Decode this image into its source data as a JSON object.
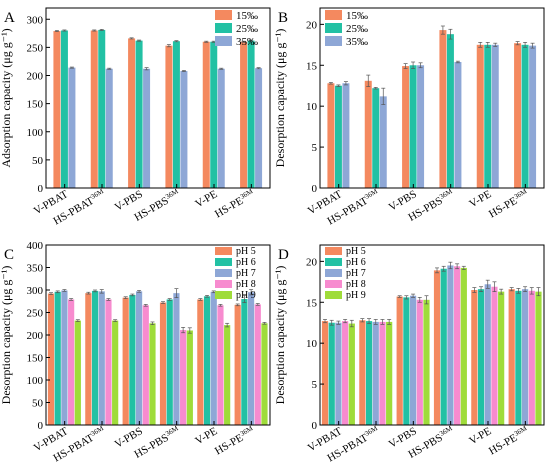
{
  "colors": {
    "orange": "#f4895f",
    "teal": "#22c1a4",
    "blue": "#8ea7d6",
    "pink": "#f78bcf",
    "green": "#9fdc3a"
  },
  "chart_data": [
    {
      "panel_letter": "A",
      "type": "bar",
      "ylabel": "Adsorption capacity (μg g⁻¹)",
      "ylim": [
        0,
        320
      ],
      "yticks": [
        0,
        50,
        100,
        150,
        200,
        250,
        300
      ],
      "categories": [
        {
          "base": "V-PBAT",
          "sup": ""
        },
        {
          "base": "HS-PBAT",
          "sup": "36M"
        },
        {
          "base": "V-PBS",
          "sup": ""
        },
        {
          "base": "HS-PBS",
          "sup": "36M"
        },
        {
          "base": "V-PE",
          "sup": ""
        },
        {
          "base": "HS-PE",
          "sup": "36M"
        }
      ],
      "legend_position": "top-right",
      "series": [
        {
          "name": "15‰",
          "color": "#f4895f",
          "values": [
            279,
            280,
            266,
            253,
            260,
            260
          ],
          "errors": [
            1,
            1,
            1,
            2,
            1,
            1
          ]
        },
        {
          "name": "25‰",
          "color": "#22c1a4",
          "values": [
            280,
            281,
            262,
            261,
            260,
            262
          ],
          "errors": [
            1,
            1,
            1,
            1,
            1,
            1
          ]
        },
        {
          "name": "35‰",
          "color": "#8ea7d6",
          "values": [
            214,
            212,
            212,
            208,
            212,
            213
          ],
          "errors": [
            1,
            1,
            2,
            1,
            1,
            1
          ]
        }
      ]
    },
    {
      "panel_letter": "B",
      "type": "bar",
      "ylabel": "Desorption capacity (μg g⁻¹)",
      "ylim": [
        0,
        22
      ],
      "yticks": [
        0,
        5,
        10,
        15,
        20
      ],
      "categories": [
        {
          "base": "V-PBAT",
          "sup": ""
        },
        {
          "base": "HS-PBAT",
          "sup": "36M"
        },
        {
          "base": "V-PBS",
          "sup": ""
        },
        {
          "base": "HS-PBS",
          "sup": "36M"
        },
        {
          "base": "V-PE",
          "sup": ""
        },
        {
          "base": "HS-PE",
          "sup": "36M"
        }
      ],
      "legend_position": "top-left",
      "series": [
        {
          "name": "15‰",
          "color": "#f4895f",
          "values": [
            12.8,
            13.1,
            14.9,
            19.3,
            17.5,
            17.7
          ],
          "errors": [
            0.1,
            0.7,
            0.3,
            0.5,
            0.3,
            0.2
          ]
        },
        {
          "name": "25‰",
          "color": "#22c1a4",
          "values": [
            12.5,
            12.2,
            15.0,
            18.8,
            17.5,
            17.5
          ],
          "errors": [
            0.1,
            0.1,
            0.4,
            0.6,
            0.3,
            0.3
          ]
        },
        {
          "name": "35‰",
          "color": "#8ea7d6",
          "values": [
            12.8,
            11.2,
            15.0,
            15.4,
            17.5,
            17.4
          ],
          "errors": [
            0.2,
            1.0,
            0.3,
            0.1,
            0.2,
            0.3
          ]
        }
      ]
    },
    {
      "panel_letter": "C",
      "type": "bar",
      "ylabel": "Desorption capacity (μg g⁻¹)",
      "ylim": [
        0,
        400
      ],
      "yticks": [
        0,
        50,
        100,
        150,
        200,
        250,
        300,
        350,
        400
      ],
      "categories": [
        {
          "base": "V-PBAT",
          "sup": ""
        },
        {
          "base": "HS-PBAT",
          "sup": "36M"
        },
        {
          "base": "V-PBS",
          "sup": ""
        },
        {
          "base": "HS-PBS",
          "sup": "36M"
        },
        {
          "base": "V-PE",
          "sup": ""
        },
        {
          "base": "HS-PE",
          "sup": "36M"
        }
      ],
      "legend_position": "top-right",
      "series": [
        {
          "name": "pH 5",
          "color": "#f4895f",
          "values": [
            292,
            293,
            283,
            272,
            279,
            267
          ],
          "errors": [
            2,
            2,
            2,
            2,
            2,
            2
          ]
        },
        {
          "name": "pH 6",
          "color": "#22c1a4",
          "values": [
            296,
            298,
            289,
            279,
            286,
            280
          ],
          "errors": [
            2,
            2,
            2,
            2,
            2,
            8
          ]
        },
        {
          "name": "pH 7",
          "color": "#8ea7d6",
          "values": [
            299,
            297,
            297,
            293,
            296,
            295
          ],
          "errors": [
            2,
            4,
            2,
            10,
            2,
            6
          ]
        },
        {
          "name": "pH 8",
          "color": "#f78bcf",
          "values": [
            279,
            279,
            266,
            211,
            266,
            268
          ],
          "errors": [
            2,
            2,
            2,
            6,
            2,
            2
          ]
        },
        {
          "name": "pH 9",
          "color": "#9fdc3a",
          "values": [
            232,
            232,
            226,
            210,
            222,
            226
          ],
          "errors": [
            2,
            2,
            3,
            6,
            4,
            2
          ]
        }
      ]
    },
    {
      "panel_letter": "D",
      "type": "bar",
      "ylabel": "Desorption capacity (μg g⁻¹)",
      "ylim": [
        0,
        22
      ],
      "yticks": [
        0,
        5,
        10,
        15,
        20
      ],
      "categories": [
        {
          "base": "V-PBAT",
          "sup": ""
        },
        {
          "base": "HS-PBAT",
          "sup": "36M"
        },
        {
          "base": "V-PBS",
          "sup": ""
        },
        {
          "base": "HS-PBS",
          "sup": "36M"
        },
        {
          "base": "V-PE",
          "sup": ""
        },
        {
          "base": "HS-PE",
          "sup": "36M"
        }
      ],
      "legend_position": "top-left",
      "series": [
        {
          "name": "pH 5",
          "color": "#f4895f",
          "values": [
            12.7,
            12.8,
            15.7,
            18.9,
            16.5,
            16.6
          ],
          "errors": [
            0.2,
            0.2,
            0.1,
            0.3,
            0.3,
            0.2
          ]
        },
        {
          "name": "pH 6",
          "color": "#22c1a4",
          "values": [
            12.5,
            12.7,
            15.6,
            19.1,
            16.6,
            16.4
          ],
          "errors": [
            0.3,
            0.3,
            0.2,
            0.3,
            0.3,
            0.3
          ]
        },
        {
          "name": "pH 7",
          "color": "#8ea7d6",
          "values": [
            12.5,
            12.6,
            15.8,
            19.5,
            17.2,
            16.6
          ],
          "errors": [
            0.2,
            0.3,
            0.2,
            0.4,
            0.5,
            0.3
          ]
        },
        {
          "name": "pH 8",
          "color": "#f78bcf",
          "values": [
            12.7,
            12.6,
            15.3,
            19.4,
            16.9,
            16.4
          ],
          "errors": [
            0.2,
            0.3,
            0.3,
            0.3,
            0.6,
            0.4
          ]
        },
        {
          "name": "pH 9",
          "color": "#9fdc3a",
          "values": [
            12.4,
            12.6,
            15.3,
            19.2,
            16.3,
            16.3
          ],
          "errors": [
            0.4,
            0.3,
            0.5,
            0.2,
            0.3,
            0.5
          ]
        }
      ]
    }
  ]
}
